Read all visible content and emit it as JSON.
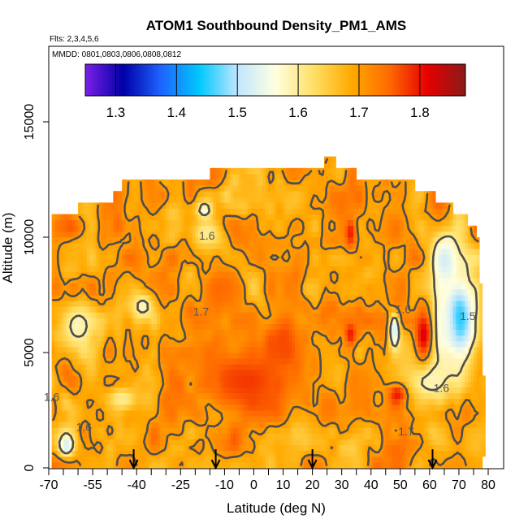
{
  "chart_data": {
    "type": "heatmap",
    "title": "ATOM1 Southbound Density_PM1_AMS",
    "flights_label": "Flts: 2,3,4,5,6",
    "dates_label": "MMDD: 0801,0803,0806,0808,0812",
    "xlabel": "Latitude (deg N)",
    "ylabel": "Altitude (m)",
    "xlim": [
      -70,
      80
    ],
    "ylim": [
      0,
      17500
    ],
    "x_ticks": [
      -70,
      -55,
      -40,
      -25,
      -10,
      0,
      10,
      20,
      30,
      40,
      50,
      60,
      70,
      80
    ],
    "x_minor_ticks": [
      -65,
      -60,
      -50,
      -45,
      -35,
      -30,
      -20,
      -15,
      -5,
      5,
      15,
      25,
      35,
      45,
      55,
      65,
      75
    ],
    "y_ticks": [
      0,
      5000,
      10000,
      15000
    ],
    "colorbar": {
      "range": [
        1.25,
        1.875
      ],
      "ticks": [
        1.3,
        1.4,
        1.5,
        1.6,
        1.7,
        1.8
      ],
      "colors": [
        "#7a1fe6",
        "#0000a8",
        "#1e64ff",
        "#00c8ff",
        "#bfe6ff",
        "#ffffe0",
        "#ffe066",
        "#ffaa00",
        "#ff6a00",
        "#e60000",
        "#8b1a1a"
      ]
    },
    "contour_labels": [
      {
        "text": "1.6",
        "lat": -16,
        "alt": 9900
      },
      {
        "text": "1.6",
        "lat": 64,
        "alt": 3300
      },
      {
        "text": "1.6",
        "lat": 51,
        "alt": 6700
      },
      {
        "text": "1.5",
        "lat": 73,
        "alt": 6400
      },
      {
        "text": "1.7",
        "lat": -18,
        "alt": 6600
      },
      {
        "text": "1.7",
        "lat": 52,
        "alt": 1400
      },
      {
        "text": "1.6",
        "lat": -58,
        "alt": 1600
      },
      {
        "text": "1.6",
        "lat": -69,
        "alt": 2900
      }
    ],
    "arrows_lat": [
      -41,
      -13,
      20,
      61
    ],
    "footprint": [
      {
        "alt": 0,
        "lat_min": -69,
        "lat_max": 78
      },
      {
        "alt": 500,
        "lat_min": -69,
        "lat_max": 79
      },
      {
        "alt": 1000,
        "lat_min": -69,
        "lat_max": 79
      },
      {
        "alt": 1500,
        "lat_min": -69,
        "lat_max": 79
      },
      {
        "alt": 2000,
        "lat_min": -69,
        "lat_max": 79
      },
      {
        "alt": 2500,
        "lat_min": -69,
        "lat_max": 79
      },
      {
        "alt": 3000,
        "lat_min": -69,
        "lat_max": 79
      },
      {
        "alt": 3500,
        "lat_min": -69,
        "lat_max": 79
      },
      {
        "alt": 4000,
        "lat_min": -69,
        "lat_max": 78
      },
      {
        "alt": 4500,
        "lat_min": -69,
        "lat_max": 78
      },
      {
        "alt": 5000,
        "lat_min": -69,
        "lat_max": 78
      },
      {
        "alt": 5500,
        "lat_min": -69,
        "lat_max": 78
      },
      {
        "alt": 6000,
        "lat_min": -69,
        "lat_max": 78
      },
      {
        "alt": 6500,
        "lat_min": -69,
        "lat_max": 78
      },
      {
        "alt": 7000,
        "lat_min": -69,
        "lat_max": 78
      },
      {
        "alt": 7500,
        "lat_min": -69,
        "lat_max": 78
      },
      {
        "alt": 8000,
        "lat_min": -69,
        "lat_max": 77
      },
      {
        "alt": 8500,
        "lat_min": -69,
        "lat_max": 77
      },
      {
        "alt": 9000,
        "lat_min": -69,
        "lat_max": 77
      },
      {
        "alt": 9500,
        "lat_min": -69,
        "lat_max": 77
      },
      {
        "alt": 10000,
        "lat_min": -69,
        "lat_max": 76
      },
      {
        "alt": 10500,
        "lat_min": -69,
        "lat_max": 73
      },
      {
        "alt": 11000,
        "lat_min": -60,
        "lat_max": 68
      },
      {
        "alt": 11500,
        "lat_min": -48,
        "lat_max": 62
      },
      {
        "alt": 12000,
        "lat_min": -45,
        "lat_max": 55
      },
      {
        "alt": 12500,
        "lat_min": -15,
        "lat_max": 35
      },
      {
        "alt": 13000,
        "lat_min": 24,
        "lat_max": 28
      }
    ],
    "features": [
      {
        "lat": 70,
        "alt": 6500,
        "value": 1.44,
        "lat_r": 6,
        "alt_r": 2000
      },
      {
        "lat": 65,
        "alt": 9000,
        "value": 1.52,
        "lat_r": 5,
        "alt_r": 1200
      },
      {
        "lat": 60,
        "alt": 3800,
        "value": 1.58,
        "lat_r": 8,
        "alt_r": 900
      },
      {
        "lat": 64,
        "alt": 6000,
        "value": 1.55,
        "lat_r": 4,
        "alt_r": 1500
      },
      {
        "lat": 48,
        "alt": 6000,
        "value": 1.52,
        "lat_r": 2,
        "alt_r": 800
      },
      {
        "lat": -16,
        "alt": 10200,
        "value": 1.6,
        "lat_r": 6,
        "alt_r": 700
      },
      {
        "lat": -17,
        "alt": 11200,
        "value": 1.56,
        "lat_r": 3,
        "alt_r": 400
      },
      {
        "lat": -60,
        "alt": 6200,
        "value": 1.58,
        "lat_r": 6,
        "alt_r": 900
      },
      {
        "lat": -38,
        "alt": 7000,
        "value": 1.58,
        "lat_r": 4,
        "alt_r": 600
      },
      {
        "lat": -64,
        "alt": 1000,
        "value": 1.52,
        "lat_r": 3,
        "alt_r": 500
      },
      {
        "lat": -45,
        "alt": 3000,
        "value": 1.6,
        "lat_r": 5,
        "alt_r": 500
      },
      {
        "lat": -2,
        "alt": 3800,
        "value": 1.78,
        "lat_r": 18,
        "alt_r": 1600
      },
      {
        "lat": 10,
        "alt": 5500,
        "value": 1.77,
        "lat_r": 6,
        "alt_r": 1500
      },
      {
        "lat": 58,
        "alt": 5800,
        "value": 1.82,
        "lat_r": 3,
        "alt_r": 1100
      },
      {
        "lat": 33,
        "alt": 5800,
        "value": 1.8,
        "lat_r": 2,
        "alt_r": 500
      },
      {
        "lat": 33,
        "alt": 10200,
        "value": 1.8,
        "lat_r": 2,
        "alt_r": 700
      },
      {
        "lat": 49,
        "alt": 3200,
        "value": 1.8,
        "lat_r": 3,
        "alt_r": 400
      },
      {
        "lat": -12,
        "alt": 7800,
        "value": 1.75,
        "lat_r": 6,
        "alt_r": 1000
      }
    ]
  }
}
